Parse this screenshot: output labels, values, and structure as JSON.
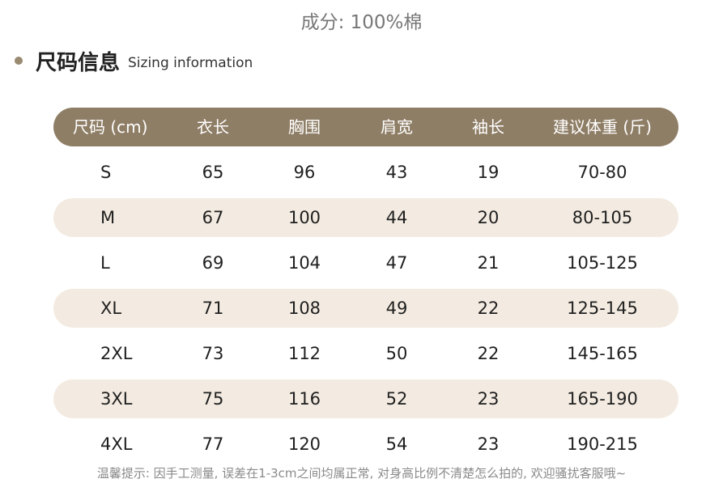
{
  "material": "成分: 100%棉",
  "section": {
    "title": "尺码信息",
    "subtitle": "Sizing information"
  },
  "table": {
    "headers": [
      "尺码 (cm)",
      "衣长",
      "胸围",
      "肩宽",
      "袖长",
      "建议体重 (斤)"
    ],
    "rows": [
      [
        "S",
        "65",
        "96",
        "43",
        "19",
        "70-80"
      ],
      [
        "M",
        "67",
        "100",
        "44",
        "20",
        "80-105"
      ],
      [
        "L",
        "69",
        "104",
        "47",
        "21",
        "105-125"
      ],
      [
        "XL",
        "71",
        "108",
        "49",
        "22",
        "125-145"
      ],
      [
        "2XL",
        "73",
        "112",
        "50",
        "22",
        "145-165"
      ],
      [
        "3XL",
        "75",
        "116",
        "52",
        "23",
        "165-190"
      ],
      [
        "4XL",
        "77",
        "120",
        "54",
        "23",
        "190-215"
      ]
    ]
  },
  "note": "温馨提示: 因手工测量, 误差在1-3cm之间均属正常, 对身高比例不清楚怎么拍的, 欢迎骚扰客服哦~",
  "colors": {
    "header_bg": "#8f7e66",
    "stripe_bg": "#f3ebe1",
    "bullet": "#9a8a72"
  }
}
